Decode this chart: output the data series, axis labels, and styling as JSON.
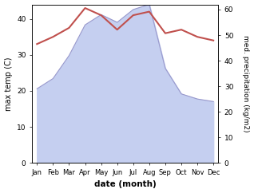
{
  "months": [
    "Jan",
    "Feb",
    "Mar",
    "Apr",
    "May",
    "Jun",
    "Jul",
    "Aug",
    "Sep",
    "Oct",
    "Nov",
    "Dec"
  ],
  "temperature": [
    33.0,
    35.0,
    37.5,
    43.0,
    41.0,
    37.0,
    41.0,
    42.0,
    36.0,
    37.0,
    35.0,
    34.0
  ],
  "precipitation": [
    29,
    33,
    42,
    54,
    58,
    55,
    60,
    62,
    37,
    27,
    25,
    24
  ],
  "temp_color": "#c0504d",
  "precip_fill_color": "#c5cff0",
  "precip_line_color": "#9999cc",
  "ylabel_left": "max temp (C)",
  "ylabel_right": "med. precipitation (kg/m2)",
  "xlabel": "date (month)",
  "ylim_left": [
    0,
    44
  ],
  "ylim_right": [
    0,
    62
  ],
  "yticks_left": [
    0,
    10,
    20,
    30,
    40
  ],
  "yticks_right": [
    0,
    10,
    20,
    30,
    40,
    50,
    60
  ],
  "bg_color": "#ffffff"
}
